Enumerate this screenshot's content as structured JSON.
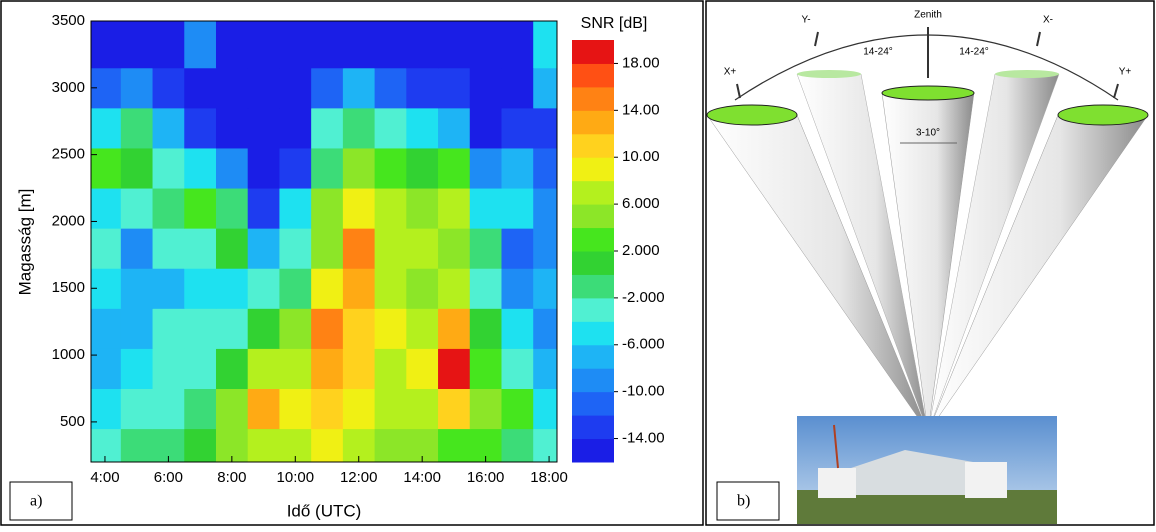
{
  "chart_data": {
    "type": "contour",
    "panel_label": "a)",
    "colorbar_title": "SNR [dB]",
    "xlabel": "Idő (UTC)",
    "ylabel": "Magasság [m]",
    "x": [
      4,
      5,
      6,
      7,
      8,
      9,
      10,
      11,
      12,
      13,
      14,
      15,
      16,
      17,
      18
    ],
    "y": [
      300,
      600,
      900,
      1200,
      1500,
      1800,
      2100,
      2400,
      2700,
      3000,
      3300
    ],
    "z": [
      [
        -4,
        -2,
        -2,
        0,
        4,
        6,
        6,
        8,
        6,
        4,
        4,
        2,
        2,
        -2,
        -4
      ],
      [
        -6,
        -4,
        -4,
        -2,
        4,
        12,
        8,
        10,
        8,
        6,
        6,
        10,
        4,
        2,
        -6
      ],
      [
        -8,
        -6,
        -4,
        -4,
        0,
        6,
        6,
        12,
        10,
        6,
        8,
        18,
        2,
        -4,
        -8
      ],
      [
        -8,
        -8,
        -4,
        -4,
        -4,
        0,
        4,
        14,
        10,
        8,
        6,
        12,
        0,
        -6,
        -10
      ],
      [
        -6,
        -8,
        -8,
        -6,
        -6,
        -4,
        -2,
        8,
        12,
        6,
        4,
        6,
        -4,
        -10,
        -8
      ],
      [
        -4,
        -10,
        -4,
        -4,
        0,
        -8,
        -4,
        4,
        14,
        6,
        6,
        4,
        -2,
        -12,
        -10
      ],
      [
        -6,
        -4,
        -2,
        2,
        -2,
        -14,
        -6,
        4,
        8,
        6,
        4,
        6,
        -6,
        -6,
        -10
      ],
      [
        2,
        0,
        -4,
        -6,
        -10,
        -16,
        -14,
        -2,
        4,
        2,
        0,
        2,
        -10,
        -8,
        -12
      ],
      [
        -6,
        -2,
        -8,
        -14,
        -16,
        -16,
        -16,
        -4,
        -2,
        -4,
        -6,
        -8,
        -16,
        -14,
        -14
      ],
      [
        -12,
        -10,
        -14,
        -16,
        -16,
        -16,
        -16,
        -12,
        -8,
        -12,
        -14,
        -14,
        -16,
        -16,
        -8
      ],
      [
        -16,
        -16,
        -16,
        -10,
        -16,
        -16,
        -16,
        -16,
        -16,
        -16,
        -16,
        -16,
        -16,
        -16,
        -6
      ]
    ],
    "xlim": [
      3.56,
      18.25
    ],
    "ylim": [
      200,
      3500
    ],
    "xticks": [
      {
        "value": 4,
        "label": "4:00"
      },
      {
        "value": 6,
        "label": "6:00"
      },
      {
        "value": 8,
        "label": "8:00"
      },
      {
        "value": 10,
        "label": "10:00"
      },
      {
        "value": 12,
        "label": "12:00"
      },
      {
        "value": 14,
        "label": "14:00"
      },
      {
        "value": 16,
        "label": "16:00"
      },
      {
        "value": 18,
        "label": "18:00"
      }
    ],
    "yticks": [
      500,
      1000,
      1500,
      2000,
      2500,
      3000,
      3500
    ],
    "clim": [
      -16,
      20
    ],
    "cticks": [
      {
        "value": 18,
        "label": "18.00"
      },
      {
        "value": 14,
        "label": "14.00"
      },
      {
        "value": 10,
        "label": "10.00"
      },
      {
        "value": 6,
        "label": "6.000"
      },
      {
        "value": 2,
        "label": "2.000"
      },
      {
        "value": -2,
        "label": "-2.000"
      },
      {
        "value": -6,
        "label": "-6.000"
      },
      {
        "value": -10,
        "label": "-10.00"
      },
      {
        "value": -14,
        "label": "-14.00"
      }
    ],
    "colors": [
      "#1a1ee6",
      "#1e3cf0",
      "#1e64f5",
      "#1e8cf5",
      "#1eb4f5",
      "#1ee1f0",
      "#50f0d2",
      "#3cdc78",
      "#32d232",
      "#46e61e",
      "#8ce628",
      "#b4f01e",
      "#f0f014",
      "#ffd21e",
      "#ffaa14",
      "#ff8214",
      "#ff5014",
      "#e61414"
    ]
  },
  "diagram": {
    "panel_label": "b)",
    "zenith": "Zenith",
    "y_minus": "Y-",
    "x_minus": "X-",
    "x_plus": "X+",
    "y_plus": "Y+",
    "tilt_left": "14-24°",
    "tilt_right": "14-24°",
    "beam_width": "3-10°"
  }
}
